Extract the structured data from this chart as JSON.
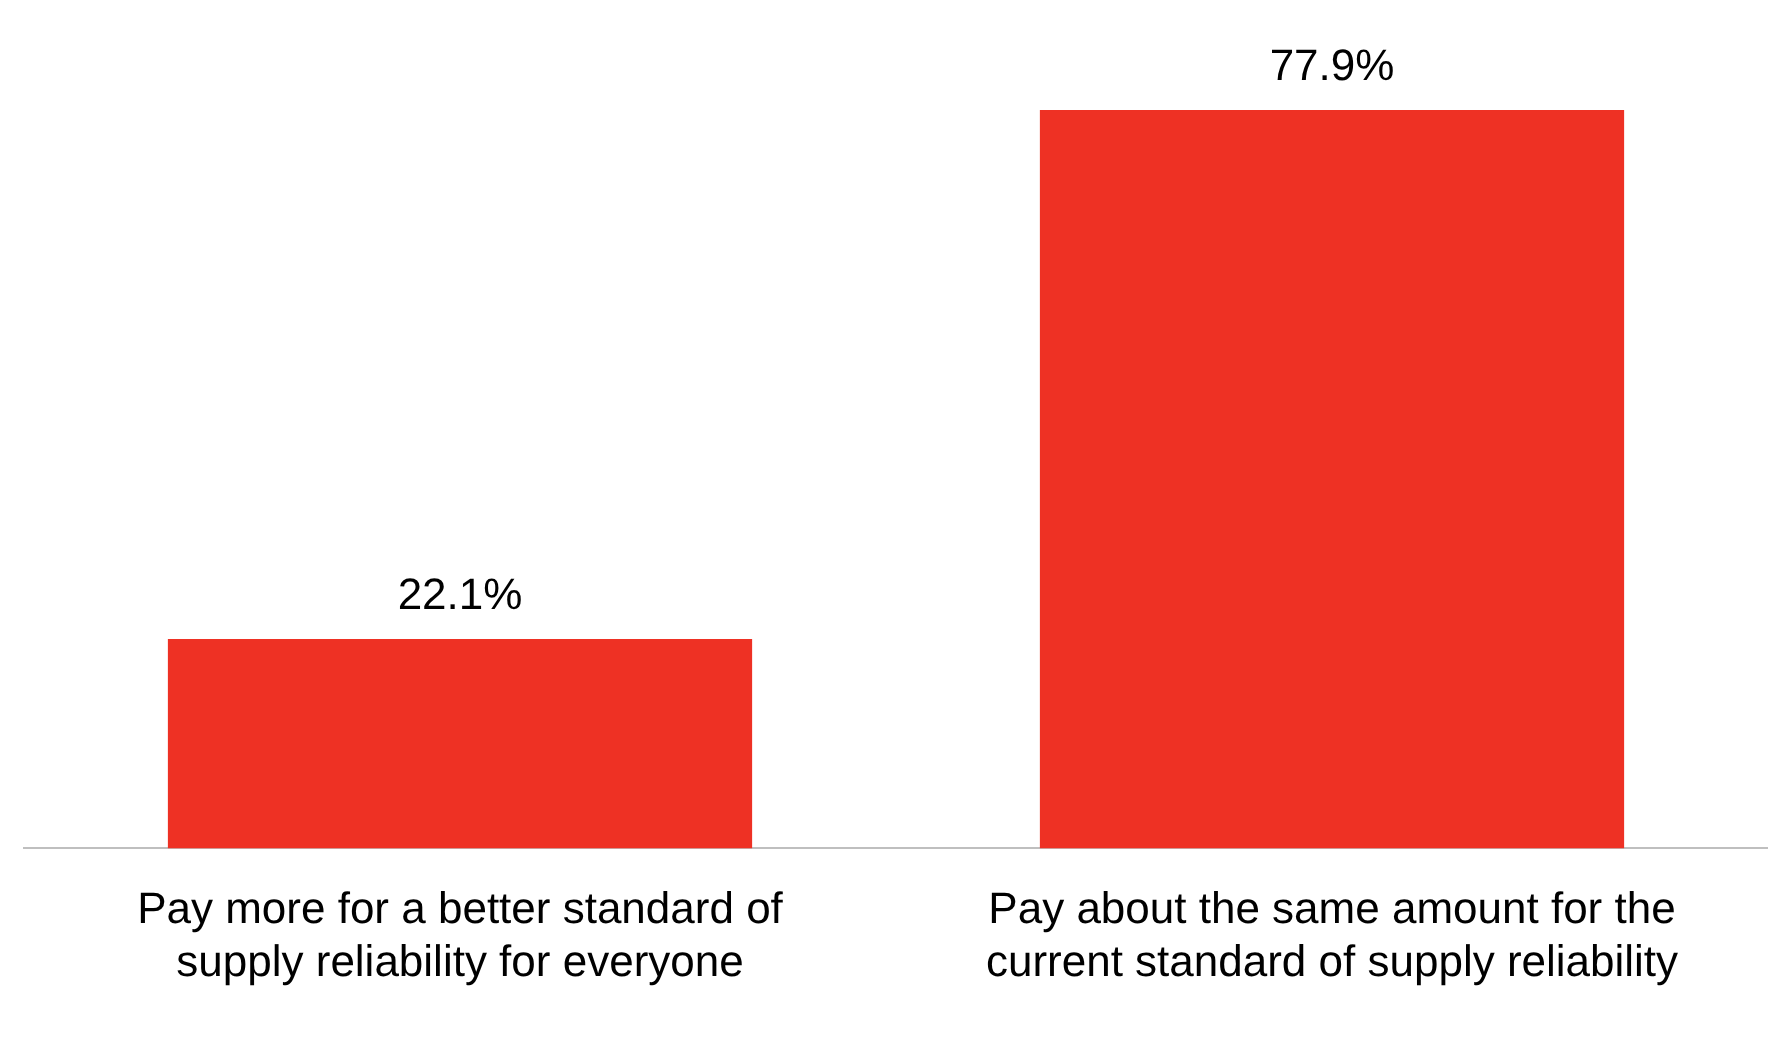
{
  "chart_data": {
    "type": "bar",
    "categories": [
      "Pay more for a better standard of supply reliability for everyone",
      "Pay about the same amount for the current standard of supply reliability"
    ],
    "values": [
      22.1,
      77.9
    ],
    "color": "#ee3124",
    "value_labels": [
      "22.1%",
      "77.9%"
    ]
  }
}
